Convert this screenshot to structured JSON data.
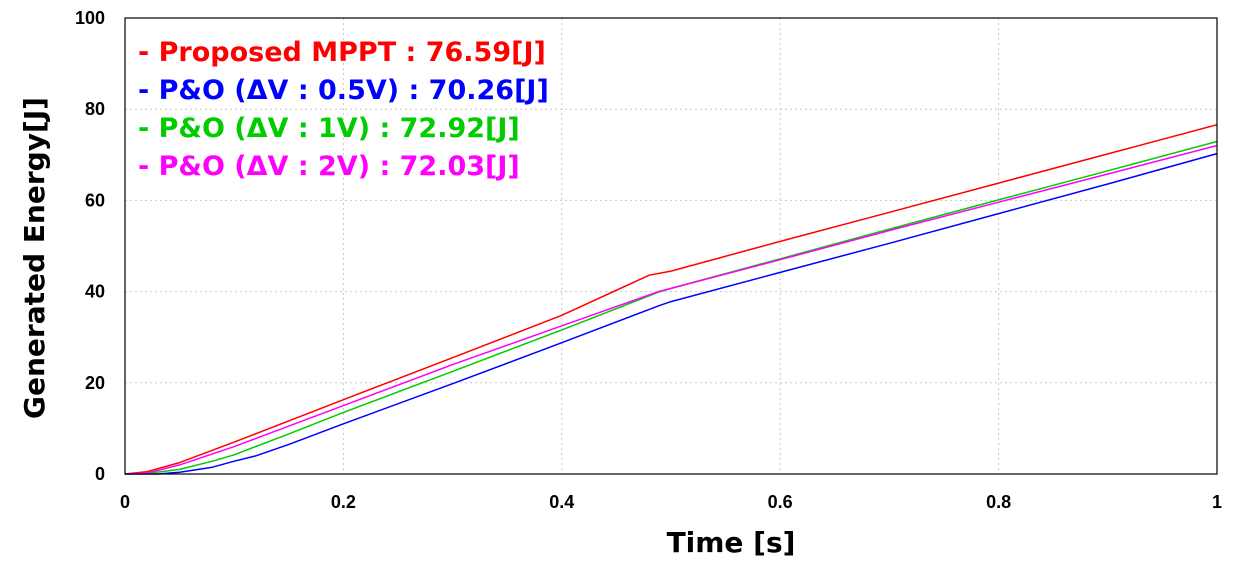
{
  "chart_data": {
    "type": "line",
    "xlabel": "Time [s]",
    "ylabel": "Generated Energy[J]",
    "xlim": [
      0,
      1
    ],
    "ylim": [
      0,
      100
    ],
    "x_ticks": [
      "0",
      "0.2",
      "0.4",
      "0.6",
      "0.8",
      "1"
    ],
    "y_ticks": [
      "0",
      "20",
      "40",
      "60",
      "80",
      "100"
    ],
    "grid": true,
    "legend_position": "top-left",
    "legend": [
      "- Proposed MPPT : 76.59[J]",
      "- P&O (ΔV : 0.5V) : 70.26[J]",
      "- P&O (ΔV : 1V) : 72.92[J]",
      "- P&O (ΔV : 2V) : 72.03[J]"
    ],
    "series": [
      {
        "color": "#ff0000",
        "x": [
          0,
          0.02,
          0.05,
          0.1,
          0.2,
          0.3,
          0.4,
          0.48,
          0.5,
          0.6,
          0.7,
          0.8,
          0.9,
          1.0
        ],
        "y": [
          0,
          0.5,
          2.5,
          7.0,
          16.3,
          25.5,
          34.8,
          43.6,
          44.5,
          51.0,
          57.4,
          63.8,
          70.2,
          76.59
        ]
      },
      {
        "color": "#0000ff",
        "x": [
          0,
          0.03,
          0.05,
          0.08,
          0.1,
          0.12,
          0.15,
          0.2,
          0.3,
          0.4,
          0.49,
          0.5,
          0.6,
          0.7,
          0.8,
          0.9,
          1.0
        ],
        "y": [
          0,
          0.0,
          0.4,
          1.5,
          2.8,
          4.0,
          6.5,
          11.0,
          19.8,
          28.8,
          37.0,
          37.8,
          44.2,
          50.6,
          57.1,
          63.6,
          70.26
        ]
      },
      {
        "color": "#00cc00",
        "x": [
          0,
          0.02,
          0.05,
          0.08,
          0.1,
          0.15,
          0.2,
          0.3,
          0.4,
          0.49,
          0.5,
          0.6,
          0.7,
          0.8,
          0.9,
          1.0
        ],
        "y": [
          0,
          0.1,
          1.0,
          2.8,
          4.2,
          8.8,
          13.5,
          22.5,
          31.6,
          40.0,
          40.7,
          47.2,
          53.7,
          60.1,
          66.5,
          72.92
        ]
      },
      {
        "color": "#ff00ff",
        "x": [
          0,
          0.02,
          0.05,
          0.08,
          0.1,
          0.15,
          0.2,
          0.3,
          0.4,
          0.49,
          0.5,
          0.6,
          0.7,
          0.8,
          0.9,
          1.0
        ],
        "y": [
          0,
          0.2,
          2.0,
          4.4,
          6.0,
          10.5,
          15.0,
          24.0,
          32.5,
          40.1,
          40.7,
          47.0,
          53.4,
          59.6,
          65.8,
          72.03
        ]
      }
    ]
  }
}
